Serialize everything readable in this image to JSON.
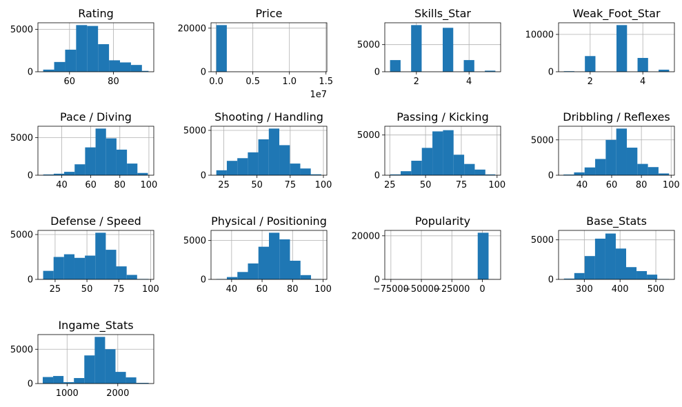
{
  "chart_data": [
    {
      "type": "bar",
      "title": "Rating",
      "xlim": [
        45.6,
        98.4
      ],
      "ylim": [
        0,
        5775
      ],
      "grid": true,
      "xticks": [
        60,
        80
      ],
      "xtick_labels": [
        "60",
        "80"
      ],
      "yticks": [
        0,
        5000
      ],
      "ytick_labels": [
        "0",
        "5000"
      ],
      "bins": [
        48,
        53,
        58,
        63,
        68,
        73,
        78,
        83,
        88,
        93,
        96
      ],
      "counts": [
        250,
        1150,
        2600,
        5500,
        5400,
        3250,
        1350,
        1100,
        800,
        100
      ]
    },
    {
      "type": "bar",
      "title": "Price",
      "xlim": [
        -720000,
        15120000
      ],
      "ylim": [
        0,
        22470
      ],
      "xticks": [
        0,
        5000000,
        10000000,
        15000000
      ],
      "xtick_labels": [
        "0.0",
        "0.5",
        "1.0",
        "1.5"
      ],
      "x_offset_label": "1e7",
      "yticks": [
        0,
        20000
      ],
      "ytick_labels": [
        "0",
        "20000"
      ],
      "bins": [
        0,
        1440000,
        2880000,
        4320000,
        5760000,
        7200000,
        8640000,
        10080000,
        11520000,
        12960000,
        14400000
      ],
      "counts": [
        21400,
        0,
        0,
        0,
        0,
        0,
        0,
        0,
        0,
        0
      ]
    },
    {
      "type": "bar",
      "title": "Skills_Star",
      "xlim": [
        0.8,
        5.2
      ],
      "ylim": [
        0,
        9030
      ],
      "xticks": [
        2,
        4
      ],
      "xtick_labels": [
        "2",
        "4"
      ],
      "yticks": [
        0,
        5000
      ],
      "ytick_labels": [
        "0",
        "5000"
      ],
      "bins": [
        1,
        1.4,
        1.8,
        2.2,
        2.6,
        3,
        3.4,
        3.8,
        4.2,
        4.6,
        5
      ],
      "counts": [
        2150,
        0,
        8600,
        0,
        0,
        8100,
        0,
        2150,
        0,
        200
      ]
    },
    {
      "type": "bar",
      "title": "Weak_Foot_Star",
      "xlim": [
        0.8,
        5.2
      ],
      "ylim": [
        0,
        13125
      ],
      "xticks": [
        2,
        4
      ],
      "xtick_labels": [
        "2",
        "4"
      ],
      "yticks": [
        0,
        10000
      ],
      "ytick_labels": [
        "0",
        "10000"
      ],
      "bins": [
        1,
        1.4,
        1.8,
        2.2,
        2.6,
        3,
        3.4,
        3.8,
        4.2,
        4.6,
        5
      ],
      "counts": [
        150,
        0,
        4200,
        0,
        0,
        12500,
        0,
        3700,
        0,
        550
      ]
    },
    {
      "type": "bar",
      "title": "Pace / Diving",
      "xlim": [
        23.65,
        103.35
      ],
      "ylim": [
        0,
        6510
      ],
      "xticks": [
        40,
        60,
        80,
        100
      ],
      "xtick_labels": [
        "40",
        "60",
        "80",
        "100"
      ],
      "yticks": [
        0,
        5000
      ],
      "ytick_labels": [
        "0",
        "5000"
      ],
      "bins": [
        27.3,
        34.5,
        41.7,
        48.9,
        56.1,
        63.3,
        70.5,
        77.7,
        84.9,
        92.1,
        99.3
      ],
      "counts": [
        100,
        200,
        450,
        1450,
        3700,
        6200,
        4900,
        3400,
        1550,
        300
      ]
    },
    {
      "type": "bar",
      "title": "Shooting / Handling",
      "xlim": [
        15.4,
        102.6
      ],
      "ylim": [
        0,
        5460
      ],
      "xticks": [
        25,
        50,
        75,
        100
      ],
      "xtick_labels": [
        "25",
        "50",
        "75",
        "100"
      ],
      "yticks": [
        0,
        5000
      ],
      "ytick_labels": [
        "0",
        "5000"
      ],
      "bins": [
        19.4,
        27.3,
        35.2,
        43.1,
        51,
        58.9,
        66.8,
        74.7,
        82.6,
        90.5,
        98.4
      ],
      "counts": [
        550,
        1600,
        1900,
        2550,
        4000,
        5200,
        3350,
        1300,
        750,
        100
      ]
    },
    {
      "type": "bar",
      "title": "Passing / Kicking",
      "xlim": [
        21.5,
        102.5
      ],
      "ylim": [
        0,
        6090
      ],
      "xticks": [
        25,
        50,
        75,
        100
      ],
      "xtick_labels": [
        "25",
        "50",
        "75",
        "100"
      ],
      "yticks": [
        0,
        5000
      ],
      "ytick_labels": [
        "0",
        "5000"
      ],
      "bins": [
        25.2,
        32.6,
        40,
        47.4,
        54.8,
        62.2,
        69.6,
        77,
        84.4,
        91.8,
        98.8
      ],
      "counts": [
        100,
        500,
        1800,
        3400,
        5450,
        5600,
        2550,
        1400,
        700,
        100
      ]
    },
    {
      "type": "bar",
      "title": "Dribbling / Reflexes",
      "xlim": [
        24.3,
        102.2
      ],
      "ylim": [
        0,
        6930
      ],
      "xticks": [
        40,
        60,
        80,
        100
      ],
      "xtick_labels": [
        "40",
        "60",
        "80",
        "100"
      ],
      "yticks": [
        0,
        5000
      ],
      "ytick_labels": [
        "0",
        "5000"
      ],
      "bins": [
        27.6,
        34.7,
        41.8,
        48.9,
        56,
        63.1,
        70.2,
        77.3,
        84.4,
        91.5,
        98.6
      ],
      "counts": [
        100,
        400,
        1100,
        2300,
        5000,
        6600,
        3900,
        1600,
        1150,
        250
      ]
    },
    {
      "type": "bar",
      "title": "Defense / Speed",
      "xlim": [
        11.5,
        102.5
      ],
      "ylim": [
        0,
        5460
      ],
      "xticks": [
        25,
        50,
        75,
        100
      ],
      "xtick_labels": [
        "25",
        "50",
        "75",
        "100"
      ],
      "yticks": [
        0,
        5000
      ],
      "ytick_labels": [
        "0",
        "5000"
      ],
      "bins": [
        15.6,
        23.8,
        32,
        40.2,
        48.4,
        56.6,
        64.8,
        73,
        81.2,
        89.4,
        98.4
      ],
      "counts": [
        950,
        2500,
        2800,
        2400,
        2650,
        5200,
        3300,
        1450,
        500,
        50
      ]
    },
    {
      "type": "bar",
      "title": "Physical / Positioning",
      "xlim": [
        26.5,
        102.5
      ],
      "ylim": [
        0,
        6300
      ],
      "xticks": [
        40,
        60,
        80,
        100
      ],
      "xtick_labels": [
        "40",
        "60",
        "80",
        "100"
      ],
      "yticks": [
        0,
        5000
      ],
      "ytick_labels": [
        "0",
        "5000"
      ],
      "bins": [
        30,
        36.9,
        43.8,
        50.7,
        57.6,
        64.5,
        71.4,
        78.3,
        85.2,
        92.1,
        99
      ],
      "counts": [
        50,
        300,
        950,
        2050,
        4200,
        6000,
        5150,
        2400,
        550,
        50
      ]
    },
    {
      "type": "bar",
      "title": "Popularity",
      "xlim": [
        -80000,
        15000
      ],
      "ylim": [
        0,
        22470
      ],
      "xticks": [
        -75000,
        -50000,
        -25000,
        0
      ],
      "xtick_labels": [
        "−75000",
        "−50000",
        "−25000",
        "0"
      ],
      "yticks": [
        0,
        20000
      ],
      "ytick_labels": [
        "0",
        "20000"
      ],
      "bins": [
        -75000,
        -66100,
        -57200,
        -48300,
        -39400,
        -30500,
        -21600,
        -12700,
        -3800,
        5100,
        10000
      ],
      "counts": [
        50,
        0,
        0,
        0,
        0,
        0,
        0,
        0,
        21400,
        50
      ]
    },
    {
      "type": "bar",
      "title": "Base_Stats",
      "xlim": [
        228,
        552
      ],
      "ylim": [
        0,
        6195
      ],
      "xticks": [
        300,
        400,
        500
      ],
      "xtick_labels": [
        "300",
        "400",
        "500"
      ],
      "yticks": [
        0,
        5000
      ],
      "ytick_labels": [
        "0",
        "5000"
      ],
      "bins": [
        243,
        272,
        301,
        330,
        359,
        388,
        417,
        446,
        475,
        504,
        537
      ],
      "counts": [
        100,
        800,
        2950,
        5150,
        5800,
        3900,
        1550,
        1050,
        600,
        50
      ]
    },
    {
      "type": "bar",
      "title": "Ingame_Stats",
      "xlim": [
        425,
        2710
      ],
      "ylim": [
        0,
        7140
      ],
      "xticks": [
        1000,
        2000
      ],
      "xtick_labels": [
        "1000",
        "2000"
      ],
      "yticks": [
        0,
        5000
      ],
      "ytick_labels": [
        "0",
        "5000"
      ],
      "bins": [
        520,
        725,
        930,
        1135,
        1340,
        1545,
        1750,
        1955,
        2160,
        2365,
        2610
      ],
      "counts": [
        950,
        1100,
        200,
        800,
        4100,
        6800,
        5000,
        1700,
        900,
        100
      ]
    }
  ],
  "colors": {
    "bar": "#1f77b4",
    "grid": "#b0b0b0",
    "spine": "#000000",
    "background": "#ffffff"
  }
}
